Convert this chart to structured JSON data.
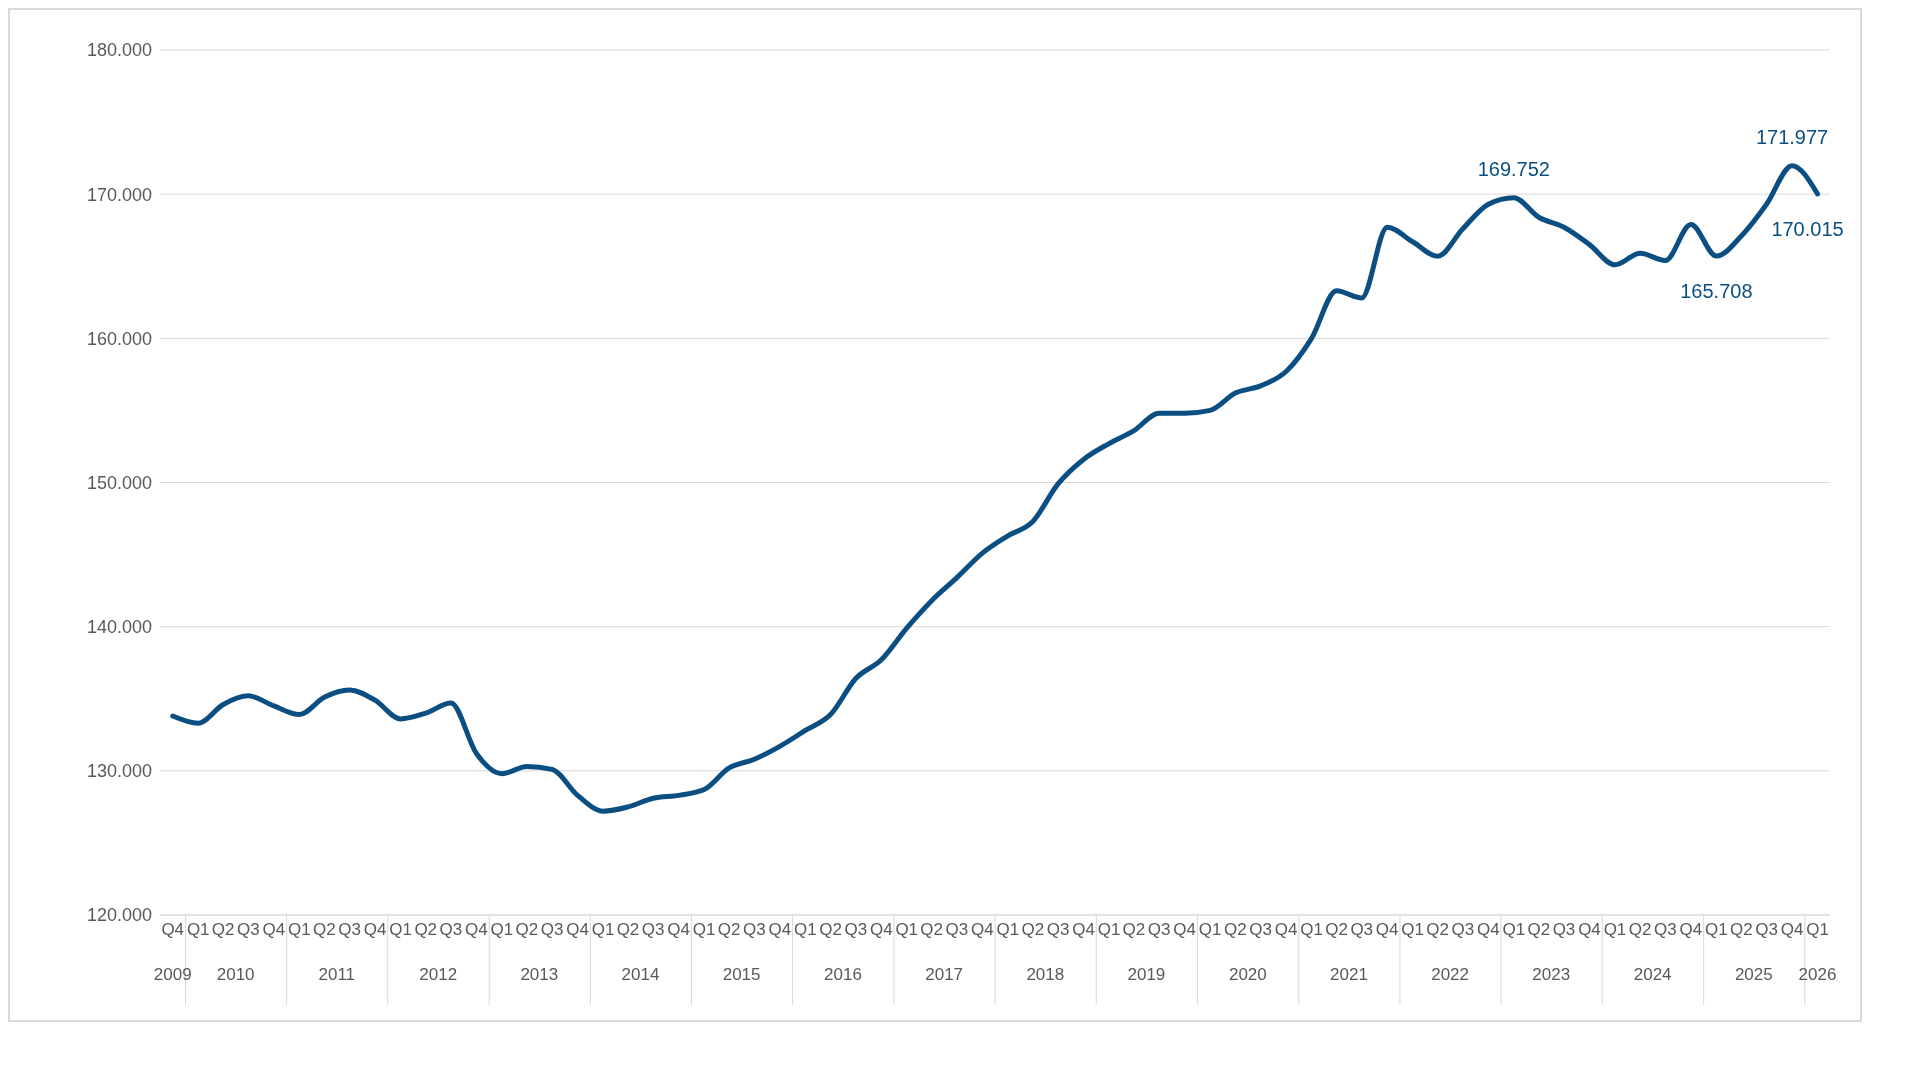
{
  "chart_data": {
    "type": "line",
    "x": [
      "2009-10",
      "2010-01",
      "2010-04",
      "2010-07",
      "2010-10",
      "2011-01",
      "2011-04",
      "2011-07",
      "2011-10",
      "2012-01",
      "2012-04",
      "2012-07",
      "2012-10",
      "2013-01",
      "2013-04",
      "2013-07",
      "2013-10",
      "2014-01",
      "2014-04",
      "2014-07",
      "2014-10",
      "2015-01",
      "2015-04",
      "2015-07",
      "2015-10",
      "2016-01",
      "2016-04",
      "2016-07",
      "2016-10",
      "2017-01",
      "2017-04",
      "2017-07",
      "2017-10",
      "2018-01",
      "2018-04",
      "2018-07",
      "2018-10",
      "2019-01",
      "2019-04",
      "2019-07",
      "2019-10",
      "2020-01",
      "2020-04",
      "2020-07",
      "2020-10",
      "2021-01",
      "2021-04",
      "2021-07",
      "2021-10",
      "2022-01",
      "2022-04",
      "2022-07",
      "2022-10",
      "2023-01",
      "2023-04",
      "2023-07",
      "2023-10",
      "2024-01",
      "2024-04",
      "2024-07",
      "2024-10",
      "2025-01",
      "2025-04",
      "2025-07",
      "2025-10",
      "2026-01"
    ],
    "series": [
      {
        "color": "#0b4f82",
        "values": [
          133800,
          133300,
          134600,
          135200,
          134500,
          133900,
          135100,
          135600,
          134900,
          133600,
          134000,
          134700,
          131200,
          129800,
          130300,
          130100,
          128300,
          127200,
          127500,
          128100,
          128300,
          128700,
          130200,
          130800,
          131700,
          132800,
          133900,
          136400,
          137700,
          139900,
          141800,
          143400,
          145100,
          146300,
          147300,
          149900,
          151600,
          152700,
          153600,
          154800,
          154800,
          155000,
          156200,
          156700,
          157700,
          160000,
          163300,
          162800,
          167700,
          166700,
          165700,
          167600,
          169300,
          169752,
          168400,
          167700,
          166500,
          165100,
          165900,
          165400,
          167900,
          165708,
          167100,
          169300,
          171977,
          170015
        ],
        "value_labels": [
          null,
          null,
          null,
          null,
          null,
          null,
          null,
          null,
          null,
          null,
          null,
          null,
          null,
          null,
          null,
          null,
          null,
          null,
          null,
          null,
          null,
          null,
          null,
          null,
          null,
          null,
          null,
          null,
          null,
          null,
          null,
          null,
          null,
          null,
          null,
          null,
          null,
          null,
          null,
          null,
          null,
          null,
          null,
          null,
          null,
          null,
          null,
          null,
          null,
          null,
          null,
          null,
          null,
          "169.752",
          null,
          null,
          null,
          null,
          null,
          null,
          null,
          "165.708",
          null,
          null,
          "171.977",
          "170.015"
        ]
      }
    ],
    "xlim": [
      "2009-08-16",
      "2026-02-15"
    ],
    "xticks": [
      {
        "value": "2009-10",
        "label": "Q4"
      },
      {
        "value": "2010-01",
        "label": "Q1"
      },
      {
        "value": "2010-04",
        "label": "Q2"
      },
      {
        "value": "2010-07",
        "label": "Q3"
      },
      {
        "value": "2010-10",
        "label": "Q4"
      },
      {
        "value": "2011-01",
        "label": "Q1"
      },
      {
        "value": "2011-04",
        "label": "Q2"
      },
      {
        "value": "2011-07",
        "label": "Q3"
      },
      {
        "value": "2011-10",
        "label": "Q4"
      },
      {
        "value": "2012-01",
        "label": "Q1"
      },
      {
        "value": "2012-04",
        "label": "Q2"
      },
      {
        "value": "2012-07",
        "label": "Q3"
      },
      {
        "value": "2012-10",
        "label": "Q4"
      },
      {
        "value": "2013-01",
        "label": "Q1"
      },
      {
        "value": "2013-04",
        "label": "Q2"
      },
      {
        "value": "2013-07",
        "label": "Q3"
      },
      {
        "value": "2013-10",
        "label": "Q4"
      },
      {
        "value": "2014-01",
        "label": "Q1"
      },
      {
        "value": "2014-04",
        "label": "Q2"
      },
      {
        "value": "2014-07",
        "label": "Q3"
      },
      {
        "value": "2014-10",
        "label": "Q4"
      },
      {
        "value": "2015-01",
        "label": "Q1"
      },
      {
        "value": "2015-04",
        "label": "Q2"
      },
      {
        "value": "2015-07",
        "label": "Q3"
      },
      {
        "value": "2015-10",
        "label": "Q4"
      },
      {
        "value": "2016-01",
        "label": "Q1"
      },
      {
        "value": "2016-04",
        "label": "Q2"
      },
      {
        "value": "2016-07",
        "label": "Q3"
      },
      {
        "value": "2016-10",
        "label": "Q4"
      },
      {
        "value": "2017-01",
        "label": "Q1"
      },
      {
        "value": "2017-04",
        "label": "Q2"
      },
      {
        "value": "2017-07",
        "label": "Q3"
      },
      {
        "value": "2017-10",
        "label": "Q4"
      },
      {
        "value": "2018-01",
        "label": "Q1"
      },
      {
        "value": "2018-04",
        "label": "Q2"
      },
      {
        "value": "2018-07",
        "label": "Q3"
      },
      {
        "value": "2018-10",
        "label": "Q4"
      },
      {
        "value": "2019-01",
        "label": "Q1"
      },
      {
        "value": "2019-04",
        "label": "Q2"
      },
      {
        "value": "2019-07",
        "label": "Q3"
      },
      {
        "value": "2019-10",
        "label": "Q4"
      },
      {
        "value": "2020-01",
        "label": "Q1"
      },
      {
        "value": "2020-04",
        "label": "Q2"
      },
      {
        "value": "2020-07",
        "label": "Q3"
      },
      {
        "value": "2020-10",
        "label": "Q4"
      },
      {
        "value": "2021-01",
        "label": "Q1"
      },
      {
        "value": "2021-04",
        "label": "Q2"
      },
      {
        "value": "2021-07",
        "label": "Q3"
      },
      {
        "value": "2021-10",
        "label": "Q4"
      },
      {
        "value": "2022-01",
        "label": "Q1"
      },
      {
        "value": "2022-04",
        "label": "Q2"
      },
      {
        "value": "2022-07",
        "label": "Q3"
      },
      {
        "value": "2022-10",
        "label": "Q4"
      },
      {
        "value": "2023-01",
        "label": "Q1"
      },
      {
        "value": "2023-04",
        "label": "Q2"
      },
      {
        "value": "2023-07",
        "label": "Q3"
      },
      {
        "value": "2023-10",
        "label": "Q4"
      },
      {
        "value": "2024-01",
        "label": "Q1"
      },
      {
        "value": "2024-04",
        "label": "Q2"
      },
      {
        "value": "2024-07",
        "label": "Q3"
      },
      {
        "value": "2024-10",
        "label": "Q4"
      },
      {
        "value": "2025-01",
        "label": "Q1"
      },
      {
        "value": "2025-04",
        "label": "Q2"
      },
      {
        "value": "2025-07",
        "label": "Q3"
      },
      {
        "value": "2025-10",
        "label": "Q4"
      },
      {
        "value": "2026-01",
        "label": "Q1"
      }
    ],
    "x2lim": [
      "2009-08-16",
      "2026-02-15"
    ],
    "x2ticks": [
      {
        "value": "2009-10",
        "label": "2009"
      },
      {
        "value": "2010-05-16",
        "label": "2010"
      },
      {
        "value": "2011-05-16",
        "label": "2011"
      },
      {
        "value": "2012-05-16",
        "label": "2012"
      },
      {
        "value": "2013-05-16",
        "label": "2013"
      },
      {
        "value": "2014-05-16",
        "label": "2014"
      },
      {
        "value": "2015-05-16",
        "label": "2015"
      },
      {
        "value": "2016-05-16",
        "label": "2016"
      },
      {
        "value": "2017-05-16",
        "label": "2017"
      },
      {
        "value": "2018-05-16",
        "label": "2018"
      },
      {
        "value": "2019-05-16",
        "label": "2019"
      },
      {
        "value": "2020-05-16",
        "label": "2020"
      },
      {
        "value": "2021-05-16",
        "label": "2021"
      },
      {
        "value": "2022-05-16",
        "label": "2022"
      },
      {
        "value": "2023-05-16",
        "label": "2023"
      },
      {
        "value": "2024-05-16",
        "label": "2024"
      },
      {
        "value": "2025-05-16",
        "label": "2025"
      },
      {
        "value": "2026-01",
        "label": "2026"
      }
    ],
    "ylim": [
      120000,
      180000
    ],
    "yticks": [
      {
        "value": 120000,
        "label": "120.000"
      },
      {
        "value": 130000,
        "label": "130.000"
      },
      {
        "value": 140000,
        "label": "140.000"
      },
      {
        "value": 150000,
        "label": "150.000"
      },
      {
        "value": 160000,
        "label": "160.000"
      },
      {
        "value": 170000,
        "label": "170.000"
      },
      {
        "value": 180000,
        "label": "180.000"
      }
    ],
    "grid": "y",
    "legend": false,
    "marker": "none",
    "line_style": "solid"
  }
}
